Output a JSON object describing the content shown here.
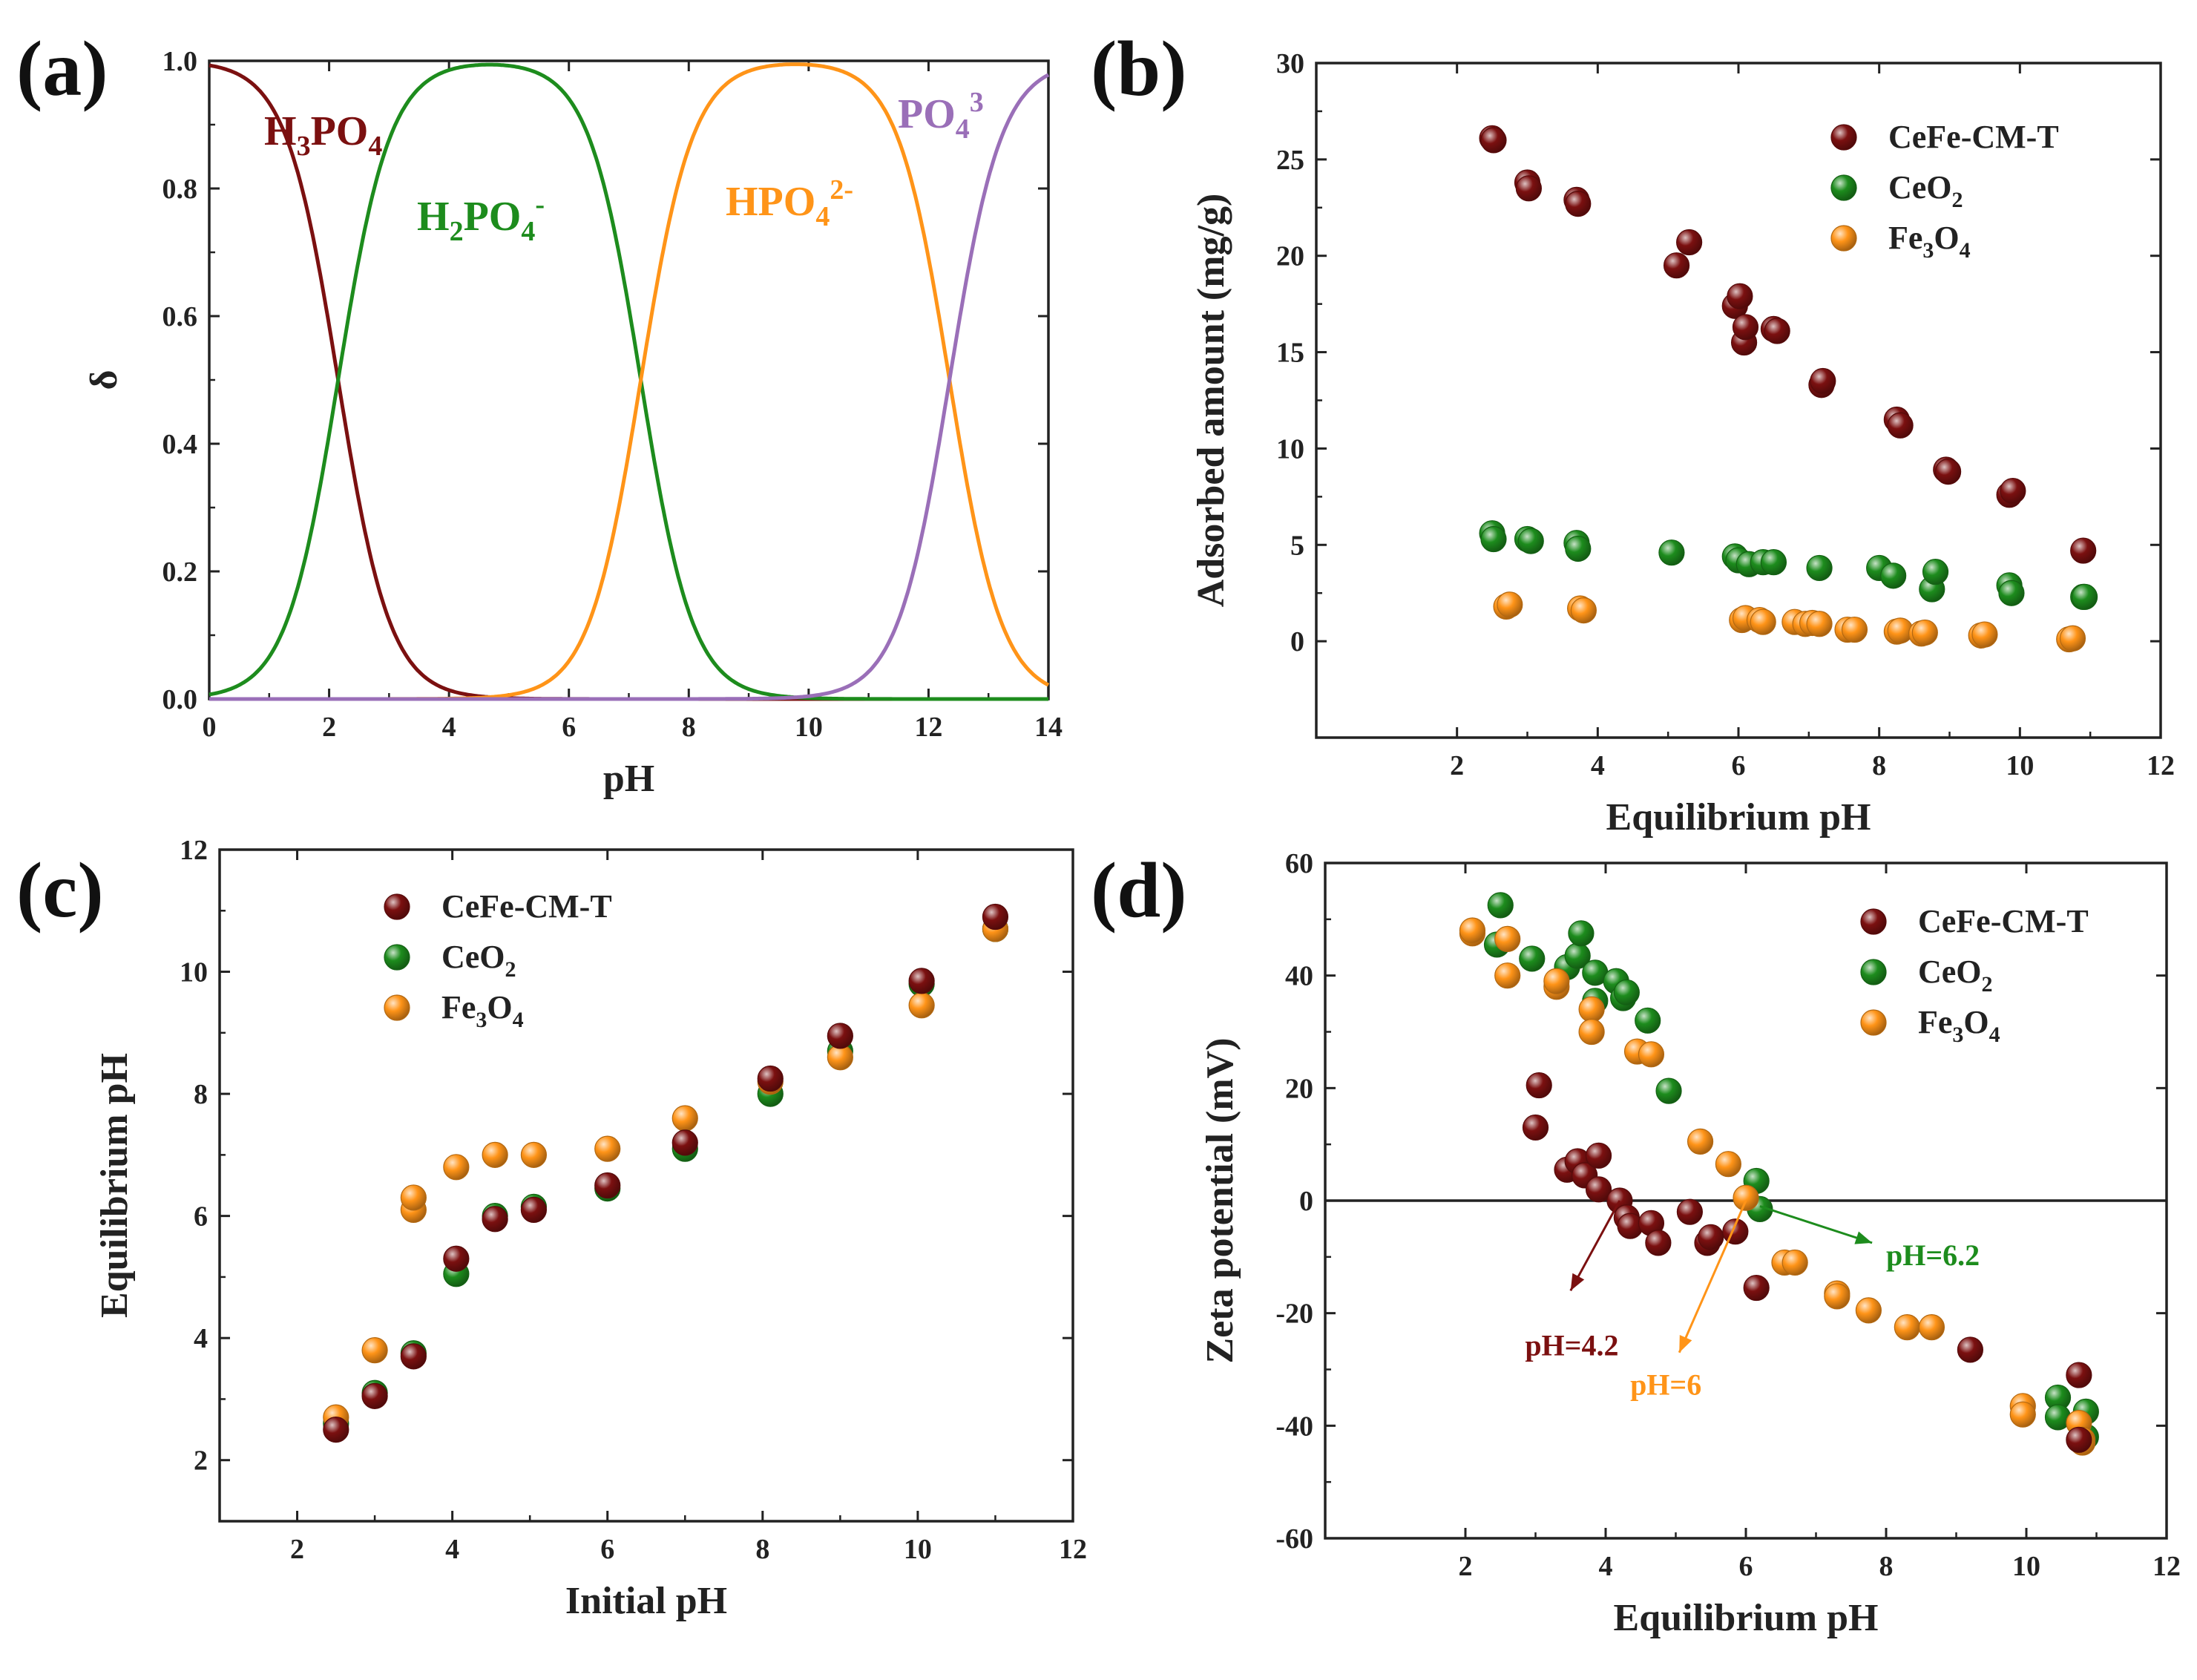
{
  "colors": {
    "cefe": "#7b1010",
    "ceo2": "#1d8c1d",
    "fe3o4": "#ff9418",
    "po4": "#9a6fb8",
    "axis": "#222222"
  },
  "chart_data": [
    {
      "id": "a",
      "panel_label": "(a)",
      "type": "line",
      "xlabel": "pH",
      "ylabel": "δ",
      "xlim": [
        0,
        14
      ],
      "ylim": [
        0,
        1.0
      ],
      "xticks": [
        0,
        2,
        4,
        6,
        8,
        10,
        12,
        14
      ],
      "yticks": [
        0.0,
        0.2,
        0.4,
        0.6,
        0.8,
        1.0
      ],
      "ytick_labels": [
        "0.0",
        "0.2",
        "0.4",
        "0.6",
        "0.8",
        "1.0"
      ],
      "pKa": [
        2.15,
        7.2,
        12.35
      ],
      "series": [
        {
          "name": "H3PO4",
          "label_main": "H",
          "sub1": "3",
          "mid": "PO",
          "sub2": "4",
          "sup": "",
          "color_key": "cefe",
          "species": 0
        },
        {
          "name": "H2PO4-",
          "label_main": "H",
          "sub1": "2",
          "mid": "PO",
          "sub2": "4",
          "sup": "-",
          "color_key": "ceo2",
          "species": 1
        },
        {
          "name": "HPO4 2-",
          "label_main": "",
          "sub1": "",
          "mid": "HPO",
          "sub2": "4",
          "sup": "2-",
          "color_key": "fe3o4",
          "species": 2
        },
        {
          "name": "PO4 3-",
          "label_main": "",
          "sub1": "",
          "mid": "PO",
          "sub2": "4",
          "sup": "3",
          "color_key": "po4",
          "species": 3
        }
      ]
    },
    {
      "id": "b",
      "panel_label": "(b)",
      "type": "scatter",
      "xlabel": "Equilibrium pH",
      "ylabel": "Adsorbed amount (mg/g)",
      "xlim": [
        0,
        12
      ],
      "ylim": [
        -5,
        30
      ],
      "xticks": [
        2,
        4,
        6,
        8,
        10,
        12
      ],
      "yticks": [
        0,
        5,
        10,
        15,
        20,
        25,
        30
      ],
      "legend": [
        {
          "text": "CeFe-CM-T",
          "color_key": "cefe"
        },
        {
          "text": "CeO",
          "sub": "2",
          "color_key": "ceo2"
        },
        {
          "text": "Fe",
          "sub": "3",
          "text2": "O",
          "sub2": "4",
          "color_key": "fe3o4"
        }
      ],
      "series": [
        {
          "name": "Fe3O4",
          "color_key": "fe3o4",
          "points": [
            [
              2.7,
              1.8
            ],
            [
              2.75,
              1.9
            ],
            [
              3.75,
              1.7
            ],
            [
              3.8,
              1.6
            ],
            [
              6.05,
              1.1
            ],
            [
              6.1,
              1.2
            ],
            [
              6.3,
              1.1
            ],
            [
              6.35,
              1.0
            ],
            [
              6.8,
              1.0
            ],
            [
              6.95,
              0.9
            ],
            [
              7.05,
              0.95
            ],
            [
              7.15,
              0.9
            ],
            [
              7.55,
              0.6
            ],
            [
              7.65,
              0.6
            ],
            [
              8.25,
              0.5
            ],
            [
              8.3,
              0.55
            ],
            [
              8.6,
              0.4
            ],
            [
              8.65,
              0.45
            ],
            [
              9.45,
              0.3
            ],
            [
              9.5,
              0.35
            ],
            [
              10.7,
              0.1
            ],
            [
              10.75,
              0.15
            ]
          ]
        },
        {
          "name": "CeO2",
          "color_key": "ceo2",
          "points": [
            [
              2.5,
              5.6
            ],
            [
              2.52,
              5.3
            ],
            [
              3.0,
              5.3
            ],
            [
              3.05,
              5.2
            ],
            [
              3.7,
              5.1
            ],
            [
              3.72,
              4.8
            ],
            [
              5.05,
              4.6
            ],
            [
              5.95,
              4.4
            ],
            [
              6.0,
              4.2
            ],
            [
              6.15,
              4.0
            ],
            [
              6.35,
              4.1
            ],
            [
              6.5,
              4.1
            ],
            [
              7.15,
              3.8
            ],
            [
              8.0,
              3.8
            ],
            [
              8.2,
              3.4
            ],
            [
              8.75,
              2.7
            ],
            [
              8.8,
              3.6
            ],
            [
              9.85,
              2.9
            ],
            [
              9.88,
              2.5
            ],
            [
              10.9,
              2.3
            ],
            [
              10.92,
              2.3
            ]
          ]
        },
        {
          "name": "CeFe-CM-T",
          "color_key": "cefe",
          "points": [
            [
              2.5,
              26.1
            ],
            [
              2.52,
              26.0
            ],
            [
              3.0,
              23.8
            ],
            [
              3.02,
              23.5
            ],
            [
              3.7,
              22.9
            ],
            [
              3.72,
              22.7
            ],
            [
              5.12,
              19.5
            ],
            [
              5.3,
              20.7
            ],
            [
              5.95,
              17.4
            ],
            [
              6.02,
              17.9
            ],
            [
              6.08,
              15.5
            ],
            [
              6.1,
              16.3
            ],
            [
              6.5,
              16.2
            ],
            [
              6.55,
              16.1
            ],
            [
              7.18,
              13.3
            ],
            [
              7.2,
              13.5
            ],
            [
              8.25,
              11.5
            ],
            [
              8.3,
              11.2
            ],
            [
              8.95,
              8.9
            ],
            [
              8.98,
              8.8
            ],
            [
              9.85,
              7.6
            ],
            [
              9.9,
              7.8
            ],
            [
              10.9,
              4.7
            ]
          ]
        }
      ]
    },
    {
      "id": "c",
      "panel_label": "(c)",
      "type": "scatter",
      "xlabel": "Initial pH",
      "ylabel": "Equilibrium pH",
      "xlim": [
        1,
        12
      ],
      "ylim": [
        1,
        12
      ],
      "xticks": [
        2,
        4,
        6,
        8,
        10,
        12
      ],
      "yticks": [
        2,
        4,
        6,
        8,
        10,
        12
      ],
      "legend": [
        {
          "text": "CeFe-CM-T",
          "color_key": "cefe"
        },
        {
          "text": "CeO",
          "sub": "2",
          "color_key": "ceo2"
        },
        {
          "text": "Fe",
          "sub": "3",
          "text2": "O",
          "sub2": "4",
          "color_key": "fe3o4"
        }
      ],
      "series": [
        {
          "name": "CeO2",
          "color_key": "ceo2",
          "points": [
            [
              2.5,
              2.6
            ],
            [
              3.0,
              3.1
            ],
            [
              3.5,
              3.75
            ],
            [
              4.05,
              5.05
            ],
            [
              4.55,
              6.0
            ],
            [
              5.05,
              6.15
            ],
            [
              6.0,
              6.45
            ],
            [
              7.0,
              7.1
            ],
            [
              8.1,
              8.0
            ],
            [
              9.0,
              8.7
            ],
            [
              10.05,
              9.8
            ],
            [
              11.0,
              10.7
            ]
          ]
        },
        {
          "name": "Fe3O4",
          "color_key": "fe3o4",
          "points": [
            [
              2.5,
              2.7
            ],
            [
              3.0,
              3.8
            ],
            [
              3.5,
              6.1
            ],
            [
              3.5,
              6.3
            ],
            [
              4.05,
              6.8
            ],
            [
              4.55,
              7.0
            ],
            [
              5.05,
              7.0
            ],
            [
              6.0,
              7.1
            ],
            [
              7.0,
              7.6
            ],
            [
              8.1,
              8.2
            ],
            [
              9.0,
              8.6
            ],
            [
              10.05,
              9.45
            ],
            [
              11.0,
              10.7
            ]
          ]
        },
        {
          "name": "CeFe-CM-T",
          "color_key": "cefe",
          "points": [
            [
              2.5,
              2.5
            ],
            [
              3.0,
              3.05
            ],
            [
              3.5,
              3.7
            ],
            [
              4.05,
              5.3
            ],
            [
              4.55,
              5.95
            ],
            [
              5.05,
              6.1
            ],
            [
              6.0,
              6.5
            ],
            [
              7.0,
              7.2
            ],
            [
              8.1,
              8.25
            ],
            [
              9.0,
              8.95
            ],
            [
              10.05,
              9.85
            ],
            [
              11.0,
              10.9
            ]
          ]
        }
      ]
    },
    {
      "id": "d",
      "panel_label": "(d)",
      "type": "scatter",
      "xlabel": "Equilibrium pH",
      "ylabel": "Zeta potential (mV)",
      "xlim": [
        0,
        12
      ],
      "ylim": [
        -60,
        60
      ],
      "xticks": [
        2,
        4,
        6,
        8,
        10,
        12
      ],
      "yticks": [
        -60,
        -40,
        -20,
        0,
        20,
        40,
        60
      ],
      "zero_line": true,
      "legend": [
        {
          "text": "CeFe-CM-T",
          "color_key": "cefe"
        },
        {
          "text": "CeO",
          "sub": "2",
          "color_key": "ceo2"
        },
        {
          "text": "Fe",
          "sub": "3",
          "text2": "O",
          "sub2": "4",
          "color_key": "fe3o4"
        }
      ],
      "annotations": [
        {
          "text": "pH=4.2",
          "color_key": "cefe",
          "x0": 4.2,
          "y0": 0,
          "x1": 3.5,
          "y1": -16,
          "tx": 2.85,
          "ty": -27.5
        },
        {
          "text": "pH=6",
          "color_key": "fe3o4",
          "x0": 6.0,
          "y0": 0,
          "x1": 5.05,
          "y1": -27,
          "tx": 4.35,
          "ty": -34.5
        },
        {
          "text": "pH=6.2",
          "color_key": "ceo2",
          "x0": 6.2,
          "y0": -1,
          "x1": 7.8,
          "y1": -7.5,
          "tx": 8.0,
          "ty": -11.5
        }
      ],
      "series": [
        {
          "name": "CeO2",
          "color_key": "ceo2",
          "points": [
            [
              2.5,
              52.5
            ],
            [
              2.45,
              45.5
            ],
            [
              2.95,
              43
            ],
            [
              3.45,
              41.5
            ],
            [
              3.6,
              43.5
            ],
            [
              3.65,
              47.5
            ],
            [
              3.85,
              40.5
            ],
            [
              3.85,
              35.5
            ],
            [
              4.15,
              39
            ],
            [
              4.25,
              36
            ],
            [
              4.3,
              37
            ],
            [
              4.6,
              32
            ],
            [
              4.9,
              19.5
            ],
            [
              6.15,
              3.5
            ],
            [
              6.2,
              -1.5
            ],
            [
              10.45,
              -35
            ],
            [
              10.45,
              -38.5
            ],
            [
              10.85,
              -37.5
            ],
            [
              10.85,
              -42
            ]
          ]
        },
        {
          "name": "Fe3O4",
          "color_key": "fe3o4",
          "points": [
            [
              2.1,
              47.5
            ],
            [
              2.1,
              48
            ],
            [
              2.6,
              46.5
            ],
            [
              2.6,
              40
            ],
            [
              3.3,
              38
            ],
            [
              3.3,
              39
            ],
            [
              3.8,
              34
            ],
            [
              3.8,
              30
            ],
            [
              4.45,
              26.5
            ],
            [
              4.65,
              26
            ],
            [
              5.35,
              10.5
            ],
            [
              5.75,
              6.5
            ],
            [
              6.0,
              0.5
            ],
            [
              6.55,
              -11
            ],
            [
              6.7,
              -11
            ],
            [
              7.3,
              -16.5
            ],
            [
              7.3,
              -17
            ],
            [
              7.75,
              -19.5
            ],
            [
              8.3,
              -22.5
            ],
            [
              8.65,
              -22.5
            ],
            [
              9.95,
              -36.5
            ],
            [
              9.95,
              -38
            ],
            [
              10.75,
              -39.5
            ],
            [
              10.8,
              -42.5
            ],
            [
              10.8,
              -43
            ]
          ]
        },
        {
          "name": "CeFe-CM-T",
          "color_key": "cefe",
          "points": [
            [
              3.05,
              20.5
            ],
            [
              3.0,
              13
            ],
            [
              3.45,
              5.5
            ],
            [
              3.6,
              7
            ],
            [
              3.7,
              4.5
            ],
            [
              3.9,
              8
            ],
            [
              3.9,
              2
            ],
            [
              4.2,
              0
            ],
            [
              4.3,
              -3
            ],
            [
              4.35,
              -4.5
            ],
            [
              4.65,
              -4
            ],
            [
              4.75,
              -7.5
            ],
            [
              5.2,
              -2
            ],
            [
              5.45,
              -7.5
            ],
            [
              5.5,
              -6.5
            ],
            [
              5.85,
              -5.5
            ],
            [
              6.15,
              -15.5
            ],
            [
              9.2,
              -26.5
            ],
            [
              10.75,
              -31
            ],
            [
              10.75,
              -42.5
            ]
          ]
        }
      ]
    }
  ]
}
